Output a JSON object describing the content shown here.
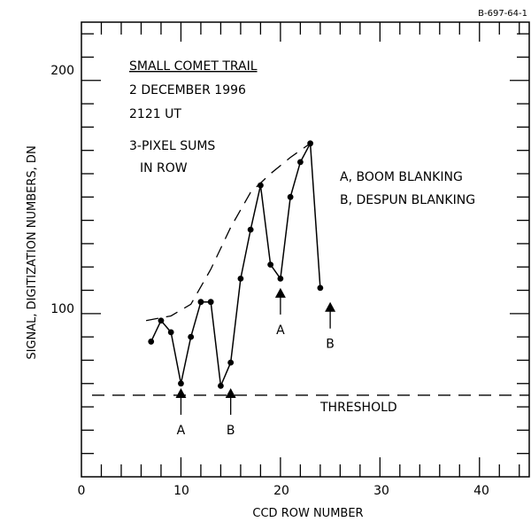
{
  "figure_id": "B-697-64-1",
  "chart_data": {
    "type": "line",
    "title_lines": [
      "SMALL COMET TRAIL",
      "2 DECEMBER 1996",
      "2121 UT"
    ],
    "note_lines": [
      "3-PIXEL SUMS",
      "IN ROW"
    ],
    "legend_lines": [
      "A, BOOM BLANKING",
      "B, DESPUN BLANKING"
    ],
    "xlabel": "CCD ROW NUMBER",
    "ylabel": "SIGNAL, DIGITIZATION NUMBERS, DN",
    "xlim": [
      0,
      45
    ],
    "ylim": [
      30,
      225
    ],
    "x_ticks": [
      "0",
      "10",
      "20",
      "30",
      "40"
    ],
    "y_ticks": [
      "100",
      "200"
    ],
    "x": [
      7,
      8,
      9,
      10,
      11,
      12,
      13,
      14,
      15,
      16,
      17,
      18,
      19,
      20,
      21,
      22,
      23,
      24
    ],
    "y": [
      88,
      97,
      92,
      70,
      90,
      105,
      105,
      69,
      79,
      115,
      136,
      155,
      121,
      115,
      150,
      165,
      173,
      111
    ],
    "envelope": {
      "x": [
        6.5,
        9,
        11,
        13,
        15,
        17,
        19,
        21,
        23
      ],
      "y": [
        97,
        99,
        104,
        119,
        137,
        152,
        160,
        167,
        173
      ]
    },
    "threshold": {
      "value": 65,
      "label": "THRESHOLD"
    },
    "markers": [
      {
        "label": "A",
        "x": 10,
        "y_head": 68
      },
      {
        "label": "B",
        "x": 15,
        "y_head": 68
      },
      {
        "label": "A",
        "x": 20,
        "y_head": 111
      },
      {
        "label": "B",
        "x": 25,
        "y_head": 105
      }
    ]
  }
}
